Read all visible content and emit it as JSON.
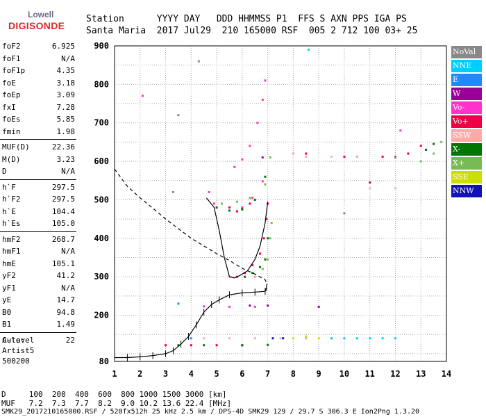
{
  "logo": {
    "top": "Lowell",
    "bottom": "DIGISONDE"
  },
  "header": {
    "row1": "Station      YYYY DAY   DDD HHMMSS P1  FFS S AXN PPS IGA PS",
    "row2": "Santa Maria  2017 Jul29  210 165000 RSF  005 2 712 100 03+ 25"
  },
  "params": {
    "group1": [
      {
        "label": "foF2",
        "value": "6.925"
      },
      {
        "label": "foF1",
        "value": "N/A"
      },
      {
        "label": "foF1p",
        "value": "4.35"
      },
      {
        "label": "foE",
        "value": "3.18"
      },
      {
        "label": "foEp",
        "value": "3.09"
      },
      {
        "label": "fxI",
        "value": "7.28"
      },
      {
        "label": "foEs",
        "value": "5.85"
      },
      {
        "label": "fmin",
        "value": "1.98"
      }
    ],
    "group2": [
      {
        "label": "MUF(D)",
        "value": "22.36"
      },
      {
        "label": "M(D)",
        "value": "3.23"
      },
      {
        "label": "D",
        "value": "N/A"
      }
    ],
    "group3": [
      {
        "label": "h`F",
        "value": "297.5"
      },
      {
        "label": "h`F2",
        "value": "297.5"
      },
      {
        "label": "h`E",
        "value": "104.4"
      },
      {
        "label": "h`Es",
        "value": "105.0"
      }
    ],
    "group4": [
      {
        "label": "hmF2",
        "value": "268.7"
      },
      {
        "label": "hmF1",
        "value": "N/A"
      },
      {
        "label": "hmE",
        "value": "105.1"
      },
      {
        "label": "yF2",
        "value": "41.2"
      },
      {
        "label": "yF1",
        "value": "N/A"
      },
      {
        "label": "yE",
        "value": "14.7"
      },
      {
        "label": "B0",
        "value": "94.8"
      },
      {
        "label": "B1",
        "value": "1.49"
      }
    ],
    "group5": [
      {
        "label": "C-level",
        "value": "22"
      }
    ]
  },
  "auto": {
    "line1": "Auto:",
    "line2": "Artist5",
    "line3": "500200"
  },
  "legend": [
    {
      "label": "NoVal",
      "color": "#888888"
    },
    {
      "label": "NNE",
      "color": "#00ccff"
    },
    {
      "label": "E",
      "color": "#2288ff"
    },
    {
      "label": "W",
      "color": "#990099"
    },
    {
      "label": "Vo-",
      "color": "#ff33cc"
    },
    {
      "label": "Vo+",
      "color": "#ee0044"
    },
    {
      "label": "SSW",
      "color": "#ffaaaa"
    },
    {
      "label": "X-",
      "color": "#007700"
    },
    {
      "label": "X+",
      "color": "#77bb55"
    },
    {
      "label": "SSE",
      "color": "#ccdd00"
    },
    {
      "label": "NNW",
      "color": "#1111bb"
    }
  ],
  "bottom": {
    "d_row": "D     100  200  400  600  800 1000 1500 3000 [km]",
    "muf_row": "MUF   7.2  7.3  7.7  8.2  9.0 10.2 13.6 22.4 [MHz]",
    "footer": "SMK29_2017210165000.RSF / 520fx512h 25 kHz 2.5 km / DPS-4D SMK29 129 / 29.7 S 306.3 E Ion2Png 1.3.20"
  },
  "chart_data": {
    "type": "scatter",
    "xlabel": "",
    "ylabel": "",
    "xlim": [
      1,
      14
    ],
    "ylim": [
      80,
      900
    ],
    "xticks": [
      1,
      2,
      3,
      4,
      5,
      6,
      7,
      8,
      9,
      10,
      11,
      12,
      13,
      14
    ],
    "yticks": [
      80,
      200,
      300,
      400,
      500,
      600,
      700,
      800,
      900
    ],
    "grid": true,
    "series": [
      {
        "name": "Vo+",
        "color": "#ee0044",
        "points": [
          [
            5.8,
            300
          ],
          [
            6.1,
            310
          ],
          [
            6.4,
            330
          ],
          [
            6.7,
            360
          ],
          [
            6.85,
            400
          ],
          [
            6.95,
            450
          ],
          [
            7.0,
            490
          ],
          [
            5.5,
            480
          ],
          [
            5.8,
            470
          ],
          [
            6.0,
            475
          ],
          [
            6.3,
            490
          ],
          [
            3.0,
            122
          ],
          [
            4.0,
            122
          ],
          [
            5.0,
            122
          ],
          [
            6.0,
            122
          ],
          [
            11.5,
            612
          ],
          [
            12.0,
            612
          ],
          [
            12.5,
            620
          ],
          [
            13.0,
            640
          ],
          [
            11.0,
            545
          ],
          [
            8.5,
            620
          ],
          [
            10.0,
            612
          ]
        ]
      },
      {
        "name": "Vo-",
        "color": "#ff33cc",
        "points": [
          [
            5.7,
            585
          ],
          [
            6.0,
            605
          ],
          [
            6.3,
            640
          ],
          [
            6.6,
            700
          ],
          [
            6.8,
            760
          ],
          [
            6.9,
            810
          ],
          [
            4.7,
            520
          ],
          [
            4.9,
            490
          ],
          [
            5.5,
            472
          ],
          [
            6.0,
            480
          ],
          [
            6.4,
            505
          ],
          [
            6.8,
            548
          ],
          [
            4.5,
            223
          ],
          [
            5.5,
            222
          ],
          [
            6.5,
            222
          ],
          [
            2.1,
            770
          ],
          [
            12.2,
            680
          ]
        ]
      },
      {
        "name": "X-",
        "color": "#007700",
        "points": [
          [
            6.1,
            300
          ],
          [
            6.4,
            310
          ],
          [
            6.7,
            325
          ],
          [
            6.9,
            345
          ],
          [
            7.0,
            400
          ],
          [
            5.0,
            480
          ],
          [
            5.5,
            472
          ],
          [
            6.0,
            476
          ],
          [
            6.5,
            500
          ],
          [
            6.9,
            560
          ],
          [
            3.5,
            122
          ],
          [
            4.5,
            122
          ],
          [
            6.0,
            122
          ],
          [
            7.0,
            123
          ],
          [
            13.2,
            630
          ],
          [
            13.5,
            645
          ],
          [
            10.5,
            612
          ]
        ]
      },
      {
        "name": "X+",
        "color": "#77bb55",
        "points": [
          [
            6.5,
            300
          ],
          [
            6.8,
            320
          ],
          [
            7.0,
            345
          ],
          [
            7.1,
            400
          ],
          [
            7.15,
            440
          ],
          [
            5.2,
            490
          ],
          [
            5.8,
            495
          ],
          [
            6.3,
            505
          ],
          [
            6.9,
            540
          ],
          [
            7.1,
            610
          ],
          [
            13.5,
            620
          ],
          [
            13.8,
            650
          ],
          [
            13.0,
            600
          ],
          [
            8.5,
            140
          ],
          [
            9.5,
            140
          ]
        ]
      },
      {
        "name": "SSW",
        "color": "#ffaaaa",
        "points": [
          [
            8.0,
            620
          ],
          [
            8.5,
            612
          ],
          [
            9.5,
            612
          ],
          [
            10.5,
            612
          ],
          [
            4.5,
            140
          ],
          [
            5.5,
            140
          ],
          [
            6.5,
            140
          ],
          [
            7.5,
            140
          ],
          [
            8.5,
            140
          ],
          [
            5.5,
            300
          ],
          [
            6.5,
            300
          ],
          [
            11.0,
            530
          ],
          [
            12.0,
            530
          ]
        ]
      },
      {
        "name": "NNE",
        "color": "#00ccff",
        "points": [
          [
            9.5,
            140
          ],
          [
            10.0,
            140
          ],
          [
            10.5,
            140
          ],
          [
            11.0,
            140
          ],
          [
            11.5,
            140
          ],
          [
            12.0,
            140
          ],
          [
            8.6,
            890
          ]
        ]
      },
      {
        "name": "SSE",
        "color": "#ccdd00",
        "points": [
          [
            8.0,
            140
          ],
          [
            8.5,
            145
          ],
          [
            9.0,
            140
          ]
        ]
      },
      {
        "name": "W",
        "color": "#990099",
        "points": [
          [
            6.3,
            225
          ],
          [
            7.0,
            225
          ],
          [
            9.0,
            222
          ],
          [
            6.8,
            610
          ]
        ]
      },
      {
        "name": "E",
        "color": "#2288ff",
        "points": [
          [
            3.5,
            230
          ],
          [
            4.0,
            140
          ]
        ]
      },
      {
        "name": "NNW",
        "color": "#1111bb",
        "points": [
          [
            7.2,
            140
          ],
          [
            7.6,
            140
          ]
        ]
      },
      {
        "name": "NoVal",
        "color": "#888888",
        "points": [
          [
            3.3,
            520
          ],
          [
            3.5,
            720
          ],
          [
            4.3,
            860
          ],
          [
            10.0,
            465
          ],
          [
            12.0,
            610
          ]
        ]
      }
    ],
    "trace_series": [
      {
        "name": "virtual height",
        "color": "#000000",
        "points": [
          [
            1.0,
            90
          ],
          [
            1.5,
            90
          ],
          [
            2.0,
            92
          ],
          [
            2.5,
            95
          ],
          [
            3.0,
            100
          ],
          [
            3.3,
            108
          ],
          [
            3.6,
            125
          ],
          [
            3.9,
            145
          ],
          [
            4.2,
            175
          ],
          [
            4.5,
            208
          ],
          [
            4.8,
            228
          ],
          [
            5.1,
            240
          ],
          [
            5.5,
            253
          ],
          [
            6.0,
            258
          ],
          [
            6.5,
            260
          ],
          [
            6.9,
            262
          ],
          [
            6.95,
            272
          ]
        ]
      },
      {
        "name": "profile",
        "color": "#000000",
        "points": [
          [
            7.0,
            495
          ],
          [
            6.9,
            440
          ],
          [
            6.7,
            380
          ],
          [
            6.5,
            345
          ],
          [
            6.2,
            315
          ],
          [
            5.9,
            303
          ],
          [
            5.7,
            297
          ],
          [
            5.5,
            300
          ],
          [
            5.3,
            350
          ],
          [
            5.1,
            420
          ],
          [
            4.9,
            480
          ],
          [
            4.6,
            505
          ]
        ]
      },
      {
        "name": "dashed",
        "color": "#000000",
        "points": [
          [
            1.0,
            580
          ],
          [
            1.5,
            535
          ],
          [
            2.0,
            505
          ],
          [
            2.5,
            478
          ],
          [
            3.0,
            450
          ],
          [
            3.5,
            425
          ],
          [
            4.0,
            400
          ],
          [
            4.5,
            380
          ],
          [
            5.0,
            360
          ],
          [
            5.5,
            342
          ],
          [
            6.0,
            322
          ],
          [
            6.5,
            307
          ],
          [
            6.9,
            292
          ],
          [
            7.0,
            280
          ]
        ]
      }
    ]
  }
}
